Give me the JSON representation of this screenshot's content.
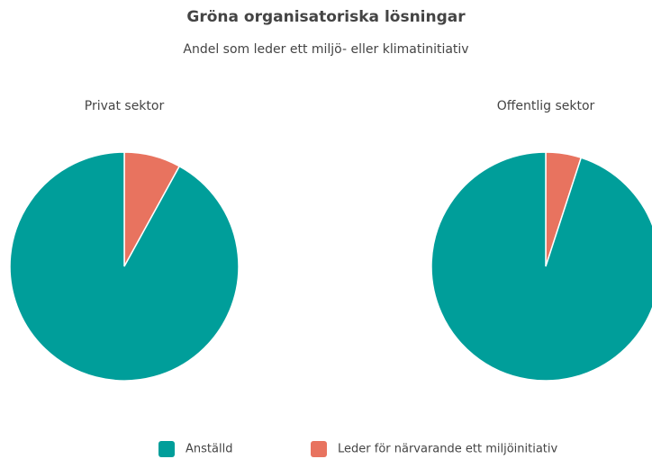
{
  "title": "Gröna organisatoriska lösningar",
  "subtitle": "Andel som leder ett miljö- eller klimatinitiativ",
  "legend": [
    {
      "name": "Anställd",
      "color": "#009e9a"
    },
    {
      "name": "Leder för närvarande ett miljöinitiativ",
      "color": "#e8735f"
    }
  ],
  "chart_data": [
    {
      "type": "pie",
      "title": "Privat sektor",
      "values": [
        92,
        8
      ]
    },
    {
      "type": "pie",
      "title": "Offentlig sektor",
      "values": [
        95,
        5
      ]
    }
  ]
}
